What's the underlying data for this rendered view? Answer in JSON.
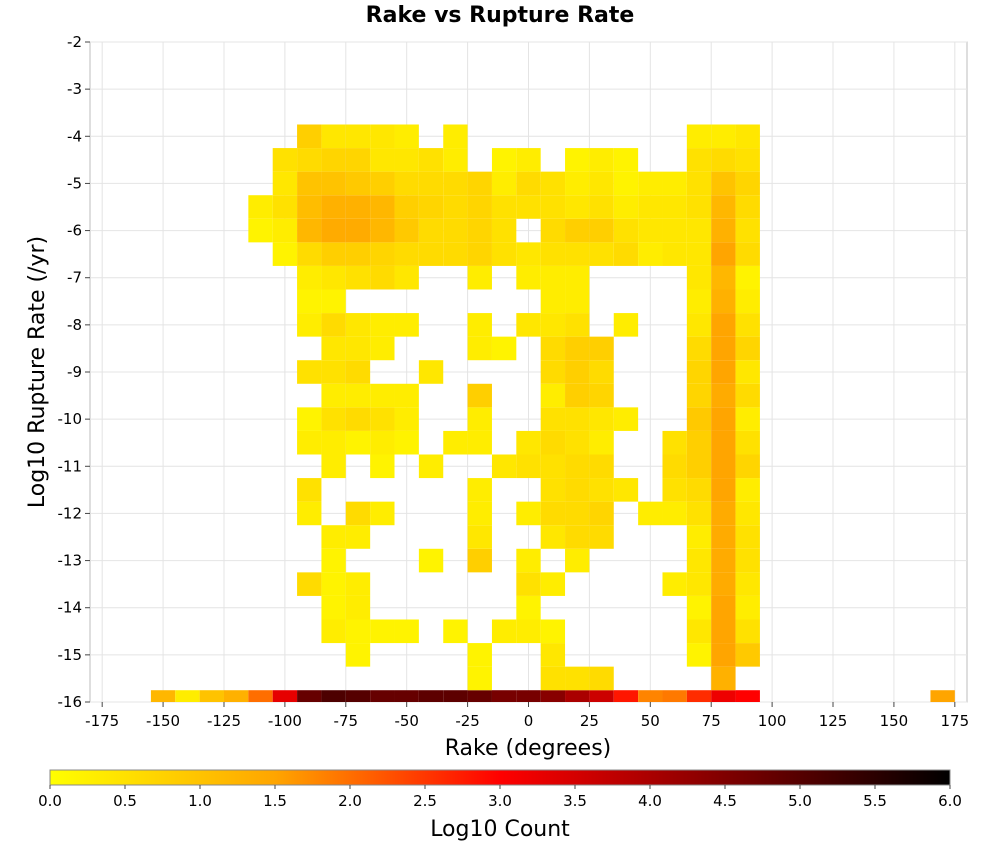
{
  "chart_data": {
    "type": "heatmap",
    "title": "Rake vs Rupture Rate",
    "xlabel": "Rake (degrees)",
    "ylabel": "Log10 Rupture Rate (/yr)",
    "xlim": [
      -180,
      180
    ],
    "ylim": [
      -16,
      -2
    ],
    "x_ticks": [
      -175,
      -150,
      -125,
      -100,
      -75,
      -50,
      -25,
      0,
      25,
      50,
      75,
      100,
      125,
      150,
      175
    ],
    "y_ticks": [
      -2,
      -3,
      -4,
      -5,
      -6,
      -7,
      -8,
      -9,
      -10,
      -11,
      -12,
      -13,
      -14,
      -15,
      -16
    ],
    "bin_size": {
      "rake": 10,
      "log_rate": 0.5
    },
    "grid": true,
    "colorbar": {
      "label": "Log10 Count",
      "range": [
        0,
        6
      ],
      "ticks": [
        "0.0",
        "0.5",
        "1.0",
        "1.5",
        "2.0",
        "2.5",
        "3.0",
        "3.5",
        "4.0",
        "4.5",
        "5.0",
        "5.5",
        "6.0"
      ],
      "gradient": [
        "#ffff00",
        "#ffa500",
        "#ff0000",
        "#000000"
      ]
    },
    "cells": [
      [
        -150,
        -16,
        1.2
      ],
      [
        -140,
        -16,
        0.3
      ],
      [
        -130,
        -16,
        1.0
      ],
      [
        -120,
        -16,
        1.3
      ],
      [
        -110,
        -16,
        2.0
      ],
      [
        -100,
        -16,
        3.3
      ],
      [
        -90,
        -16,
        4.8
      ],
      [
        -80,
        -16,
        5.1
      ],
      [
        -70,
        -16,
        5.0
      ],
      [
        -60,
        -16,
        4.8
      ],
      [
        -50,
        -16,
        4.8
      ],
      [
        -40,
        -16,
        4.9
      ],
      [
        -30,
        -16,
        4.9
      ],
      [
        -20,
        -16,
        4.8
      ],
      [
        -10,
        -16,
        4.6
      ],
      [
        0,
        -16,
        4.6
      ],
      [
        10,
        -16,
        4.4
      ],
      [
        20,
        -16,
        4.0
      ],
      [
        30,
        -16,
        3.6
      ],
      [
        40,
        -16,
        2.8
      ],
      [
        50,
        -16,
        1.8
      ],
      [
        60,
        -16,
        1.9
      ],
      [
        70,
        -16,
        2.6
      ],
      [
        80,
        -16,
        3.2
      ],
      [
        90,
        -16,
        3.0
      ],
      [
        170,
        -16,
        1.5
      ],
      [
        -20,
        -15.5,
        0.2
      ],
      [
        10,
        -15.5,
        0.5
      ],
      [
        20,
        -15.5,
        0.5
      ],
      [
        30,
        -15.5,
        0.6
      ],
      [
        80,
        -15.5,
        1.3
      ],
      [
        -70,
        -15,
        0.2
      ],
      [
        -20,
        -15,
        0.2
      ],
      [
        10,
        -15,
        0.4
      ],
      [
        70,
        -15,
        0.2
      ],
      [
        80,
        -15,
        1.5
      ],
      [
        90,
        -15,
        0.9
      ],
      [
        -80,
        -14.5,
        0.3
      ],
      [
        -70,
        -14.5,
        0.2
      ],
      [
        -60,
        -14.5,
        0.2
      ],
      [
        -50,
        -14.5,
        0.2
      ],
      [
        -30,
        -14.5,
        0.2
      ],
      [
        -10,
        -14.5,
        0.3
      ],
      [
        0,
        -14.5,
        0.3
      ],
      [
        10,
        -14.5,
        0.2
      ],
      [
        70,
        -14.5,
        0.4
      ],
      [
        80,
        -14.5,
        1.5
      ],
      [
        90,
        -14.5,
        0.5
      ],
      [
        -80,
        -14,
        0.2
      ],
      [
        -70,
        -14,
        0.3
      ],
      [
        0,
        -14,
        0.2
      ],
      [
        70,
        -14,
        0.2
      ],
      [
        80,
        -14,
        1.5
      ],
      [
        90,
        -14,
        0.3
      ],
      [
        -90,
        -13.5,
        0.6
      ],
      [
        -80,
        -13.5,
        0.2
      ],
      [
        -70,
        -13.5,
        0.3
      ],
      [
        0,
        -13.5,
        0.5
      ],
      [
        10,
        -13.5,
        0.3
      ],
      [
        60,
        -13.5,
        0.3
      ],
      [
        70,
        -13.5,
        0.4
      ],
      [
        80,
        -13.5,
        1.4
      ],
      [
        90,
        -13.5,
        0.4
      ],
      [
        -80,
        -13,
        0.2
      ],
      [
        -40,
        -13,
        0.2
      ],
      [
        -20,
        -13,
        0.8
      ],
      [
        0,
        -13,
        0.3
      ],
      [
        20,
        -13,
        0.3
      ],
      [
        70,
        -13,
        0.4
      ],
      [
        80,
        -13,
        1.4
      ],
      [
        90,
        -13,
        0.5
      ],
      [
        -80,
        -12.5,
        0.3
      ],
      [
        -70,
        -12.5,
        0.3
      ],
      [
        -20,
        -12.5,
        0.4
      ],
      [
        10,
        -12.5,
        0.4
      ],
      [
        20,
        -12.5,
        0.6
      ],
      [
        30,
        -12.5,
        0.6
      ],
      [
        70,
        -12.5,
        0.3
      ],
      [
        80,
        -12.5,
        1.4
      ],
      [
        90,
        -12.5,
        0.5
      ],
      [
        -90,
        -12,
        0.3
      ],
      [
        -70,
        -12,
        0.6
      ],
      [
        -60,
        -12,
        0.3
      ],
      [
        -20,
        -12,
        0.3
      ],
      [
        0,
        -12,
        0.3
      ],
      [
        10,
        -12,
        0.6
      ],
      [
        20,
        -12,
        0.6
      ],
      [
        30,
        -12,
        0.7
      ],
      [
        50,
        -12,
        0.3
      ],
      [
        60,
        -12,
        0.3
      ],
      [
        70,
        -12,
        0.5
      ],
      [
        80,
        -12,
        1.4
      ],
      [
        90,
        -12,
        0.4
      ],
      [
        -90,
        -11.5,
        0.5
      ],
      [
        -20,
        -11.5,
        0.3
      ],
      [
        10,
        -11.5,
        0.5
      ],
      [
        20,
        -11.5,
        0.6
      ],
      [
        30,
        -11.5,
        0.5
      ],
      [
        40,
        -11.5,
        0.4
      ],
      [
        60,
        -11.5,
        0.5
      ],
      [
        70,
        -11.5,
        0.6
      ],
      [
        80,
        -11.5,
        1.5
      ],
      [
        90,
        -11.5,
        0.3
      ],
      [
        -80,
        -11,
        0.3
      ],
      [
        -60,
        -11,
        0.2
      ],
      [
        -40,
        -11,
        0.3
      ],
      [
        -10,
        -11,
        0.4
      ],
      [
        0,
        -11,
        0.5
      ],
      [
        10,
        -11,
        0.5
      ],
      [
        20,
        -11,
        0.6
      ],
      [
        30,
        -11,
        0.6
      ],
      [
        60,
        -11,
        0.6
      ],
      [
        70,
        -11,
        0.8
      ],
      [
        80,
        -11,
        1.5
      ],
      [
        90,
        -11,
        0.7
      ],
      [
        -90,
        -10.5,
        0.3
      ],
      [
        -80,
        -10.5,
        0.3
      ],
      [
        -70,
        -10.5,
        0.2
      ],
      [
        -60,
        -10.5,
        0.3
      ],
      [
        -50,
        -10.5,
        0.2
      ],
      [
        -30,
        -10.5,
        0.3
      ],
      [
        -20,
        -10.5,
        0.3
      ],
      [
        0,
        -10.5,
        0.4
      ],
      [
        10,
        -10.5,
        0.6
      ],
      [
        20,
        -10.5,
        0.5
      ],
      [
        30,
        -10.5,
        0.3
      ],
      [
        60,
        -10.5,
        0.5
      ],
      [
        70,
        -10.5,
        0.8
      ],
      [
        80,
        -10.5,
        1.5
      ],
      [
        90,
        -10.5,
        0.5
      ],
      [
        -90,
        -10,
        0.2
      ],
      [
        -80,
        -10,
        0.5
      ],
      [
        -70,
        -10,
        0.6
      ],
      [
        -60,
        -10,
        0.5
      ],
      [
        -50,
        -10,
        0.3
      ],
      [
        -20,
        -10,
        0.3
      ],
      [
        10,
        -10,
        0.5
      ],
      [
        20,
        -10,
        0.5
      ],
      [
        30,
        -10,
        0.4
      ],
      [
        40,
        -10,
        0.3
      ],
      [
        70,
        -10,
        0.9
      ],
      [
        80,
        -10,
        1.5
      ],
      [
        90,
        -10,
        0.3
      ],
      [
        -80,
        -9.5,
        0.3
      ],
      [
        -70,
        -9.5,
        0.3
      ],
      [
        -60,
        -9.5,
        0.3
      ],
      [
        -50,
        -9.5,
        0.3
      ],
      [
        -20,
        -9.5,
        0.8
      ],
      [
        10,
        -9.5,
        0.3
      ],
      [
        20,
        -9.5,
        0.8
      ],
      [
        30,
        -9.5,
        0.7
      ],
      [
        70,
        -9.5,
        0.7
      ],
      [
        80,
        -9.5,
        1.4
      ],
      [
        90,
        -9.5,
        0.6
      ],
      [
        -90,
        -9,
        0.5
      ],
      [
        -80,
        -9,
        0.5
      ],
      [
        -70,
        -9,
        0.6
      ],
      [
        -40,
        -9,
        0.4
      ],
      [
        10,
        -9,
        0.6
      ],
      [
        20,
        -9,
        0.8
      ],
      [
        30,
        -9,
        0.6
      ],
      [
        70,
        -9,
        0.7
      ],
      [
        80,
        -9,
        1.5
      ],
      [
        90,
        -9,
        0.4
      ],
      [
        -80,
        -8.5,
        0.4
      ],
      [
        -70,
        -8.5,
        0.4
      ],
      [
        -60,
        -8.5,
        0.3
      ],
      [
        -20,
        -8.5,
        0.3
      ],
      [
        -10,
        -8.5,
        0.2
      ],
      [
        10,
        -8.5,
        0.6
      ],
      [
        20,
        -8.5,
        0.8
      ],
      [
        30,
        -8.5,
        0.8
      ],
      [
        70,
        -8.5,
        0.6
      ],
      [
        80,
        -8.5,
        1.5
      ],
      [
        90,
        -8.5,
        0.7
      ],
      [
        -90,
        -8,
        0.3
      ],
      [
        -80,
        -8,
        0.6
      ],
      [
        -70,
        -8,
        0.4
      ],
      [
        -60,
        -8,
        0.3
      ],
      [
        -50,
        -8,
        0.3
      ],
      [
        -20,
        -8,
        0.3
      ],
      [
        0,
        -8,
        0.4
      ],
      [
        10,
        -8,
        0.4
      ],
      [
        20,
        -8,
        0.5
      ],
      [
        40,
        -8,
        0.3
      ],
      [
        70,
        -8,
        0.4
      ],
      [
        80,
        -8,
        1.5
      ],
      [
        90,
        -8,
        0.5
      ],
      [
        -90,
        -7.5,
        0.2
      ],
      [
        -80,
        -7.5,
        0.2
      ],
      [
        10,
        -7.5,
        0.3
      ],
      [
        20,
        -7.5,
        0.3
      ],
      [
        70,
        -7.5,
        0.3
      ],
      [
        80,
        -7.5,
        1.3
      ],
      [
        90,
        -7.5,
        0.3
      ],
      [
        -90,
        -7,
        0.3
      ],
      [
        -80,
        -7,
        0.4
      ],
      [
        -70,
        -7,
        0.5
      ],
      [
        -60,
        -7,
        0.6
      ],
      [
        -50,
        -7,
        0.4
      ],
      [
        -20,
        -7,
        0.3
      ],
      [
        0,
        -7,
        0.3
      ],
      [
        10,
        -7,
        0.3
      ],
      [
        20,
        -7,
        0.3
      ],
      [
        70,
        -7,
        0.4
      ],
      [
        80,
        -7,
        1.2
      ],
      [
        90,
        -7,
        0.2
      ],
      [
        -100,
        -6.5,
        0.2
      ],
      [
        -90,
        -6.5,
        0.6
      ],
      [
        -80,
        -6.5,
        0.8
      ],
      [
        -70,
        -6.5,
        0.8
      ],
      [
        -60,
        -6.5,
        0.7
      ],
      [
        -50,
        -6.5,
        0.6
      ],
      [
        -40,
        -6.5,
        0.6
      ],
      [
        -30,
        -6.5,
        0.6
      ],
      [
        -20,
        -6.5,
        0.7
      ],
      [
        -10,
        -6.5,
        0.5
      ],
      [
        0,
        -6.5,
        0.4
      ],
      [
        10,
        -6.5,
        0.5
      ],
      [
        20,
        -6.5,
        0.5
      ],
      [
        30,
        -6.5,
        0.5
      ],
      [
        40,
        -6.5,
        0.6
      ],
      [
        50,
        -6.5,
        0.3
      ],
      [
        60,
        -6.5,
        0.4
      ],
      [
        70,
        -6.5,
        0.4
      ],
      [
        80,
        -6.5,
        1.5
      ],
      [
        90,
        -6.5,
        0.6
      ],
      [
        -110,
        -6,
        0.2
      ],
      [
        -100,
        -6,
        0.3
      ],
      [
        -90,
        -6,
        1.2
      ],
      [
        -80,
        -6,
        1.4
      ],
      [
        -70,
        -6,
        1.4
      ],
      [
        -60,
        -6,
        1.2
      ],
      [
        -50,
        -6,
        0.9
      ],
      [
        -40,
        -6,
        0.6
      ],
      [
        -30,
        -6,
        0.6
      ],
      [
        -20,
        -6,
        0.7
      ],
      [
        -10,
        -6,
        0.5
      ],
      [
        10,
        -6,
        0.6
      ],
      [
        20,
        -6,
        0.8
      ],
      [
        30,
        -6,
        0.8
      ],
      [
        40,
        -6,
        0.5
      ],
      [
        50,
        -6,
        0.4
      ],
      [
        60,
        -6,
        0.4
      ],
      [
        70,
        -6,
        0.4
      ],
      [
        80,
        -6,
        1.3
      ],
      [
        90,
        -6,
        0.5
      ],
      [
        -110,
        -5.5,
        0.3
      ],
      [
        -100,
        -5.5,
        0.5
      ],
      [
        -90,
        -5.5,
        1.1
      ],
      [
        -80,
        -5.5,
        1.3
      ],
      [
        -70,
        -5.5,
        1.3
      ],
      [
        -60,
        -5.5,
        1.2
      ],
      [
        -50,
        -5.5,
        0.8
      ],
      [
        -40,
        -5.5,
        0.7
      ],
      [
        -30,
        -5.5,
        0.6
      ],
      [
        -20,
        -5.5,
        0.7
      ],
      [
        -10,
        -5.5,
        0.5
      ],
      [
        0,
        -5.5,
        0.5
      ],
      [
        10,
        -5.5,
        0.5
      ],
      [
        20,
        -5.5,
        0.4
      ],
      [
        30,
        -5.5,
        0.5
      ],
      [
        40,
        -5.5,
        0.3
      ],
      [
        50,
        -5.5,
        0.4
      ],
      [
        60,
        -5.5,
        0.4
      ],
      [
        70,
        -5.5,
        0.5
      ],
      [
        80,
        -5.5,
        1.2
      ],
      [
        90,
        -5.5,
        0.6
      ],
      [
        -100,
        -5,
        0.4
      ],
      [
        -90,
        -5,
        1.0
      ],
      [
        -80,
        -5,
        1.0
      ],
      [
        -70,
        -5,
        0.9
      ],
      [
        -60,
        -5,
        0.8
      ],
      [
        -50,
        -5,
        0.6
      ],
      [
        -40,
        -5,
        0.6
      ],
      [
        -30,
        -5,
        0.6
      ],
      [
        -20,
        -5,
        0.7
      ],
      [
        -10,
        -5,
        0.3
      ],
      [
        0,
        -5,
        0.6
      ],
      [
        10,
        -5,
        0.5
      ],
      [
        20,
        -5,
        0.3
      ],
      [
        30,
        -5,
        0.4
      ],
      [
        40,
        -5,
        0.2
      ],
      [
        50,
        -5,
        0.3
      ],
      [
        60,
        -5,
        0.3
      ],
      [
        70,
        -5,
        0.5
      ],
      [
        80,
        -5,
        1.0
      ],
      [
        90,
        -5,
        0.7
      ],
      [
        -100,
        -4.5,
        0.5
      ],
      [
        -90,
        -4.5,
        0.6
      ],
      [
        -80,
        -4.5,
        0.7
      ],
      [
        -70,
        -4.5,
        0.7
      ],
      [
        -60,
        -4.5,
        0.4
      ],
      [
        -50,
        -4.5,
        0.4
      ],
      [
        -40,
        -4.5,
        0.5
      ],
      [
        -30,
        -4.5,
        0.3
      ],
      [
        -10,
        -4.5,
        0.2
      ],
      [
        0,
        -4.5,
        0.3
      ],
      [
        20,
        -4.5,
        0.2
      ],
      [
        30,
        -4.5,
        0.3
      ],
      [
        40,
        -4.5,
        0.2
      ],
      [
        70,
        -4.5,
        0.5
      ],
      [
        80,
        -4.5,
        0.6
      ],
      [
        90,
        -4.5,
        0.5
      ],
      [
        -90,
        -4,
        0.8
      ],
      [
        -80,
        -4,
        0.4
      ],
      [
        -70,
        -4,
        0.4
      ],
      [
        -60,
        -4,
        0.4
      ],
      [
        -50,
        -4,
        0.3
      ],
      [
        -30,
        -4,
        0.3
      ],
      [
        70,
        -4,
        0.3
      ],
      [
        80,
        -4,
        0.3
      ],
      [
        90,
        -4,
        0.4
      ]
    ]
  }
}
